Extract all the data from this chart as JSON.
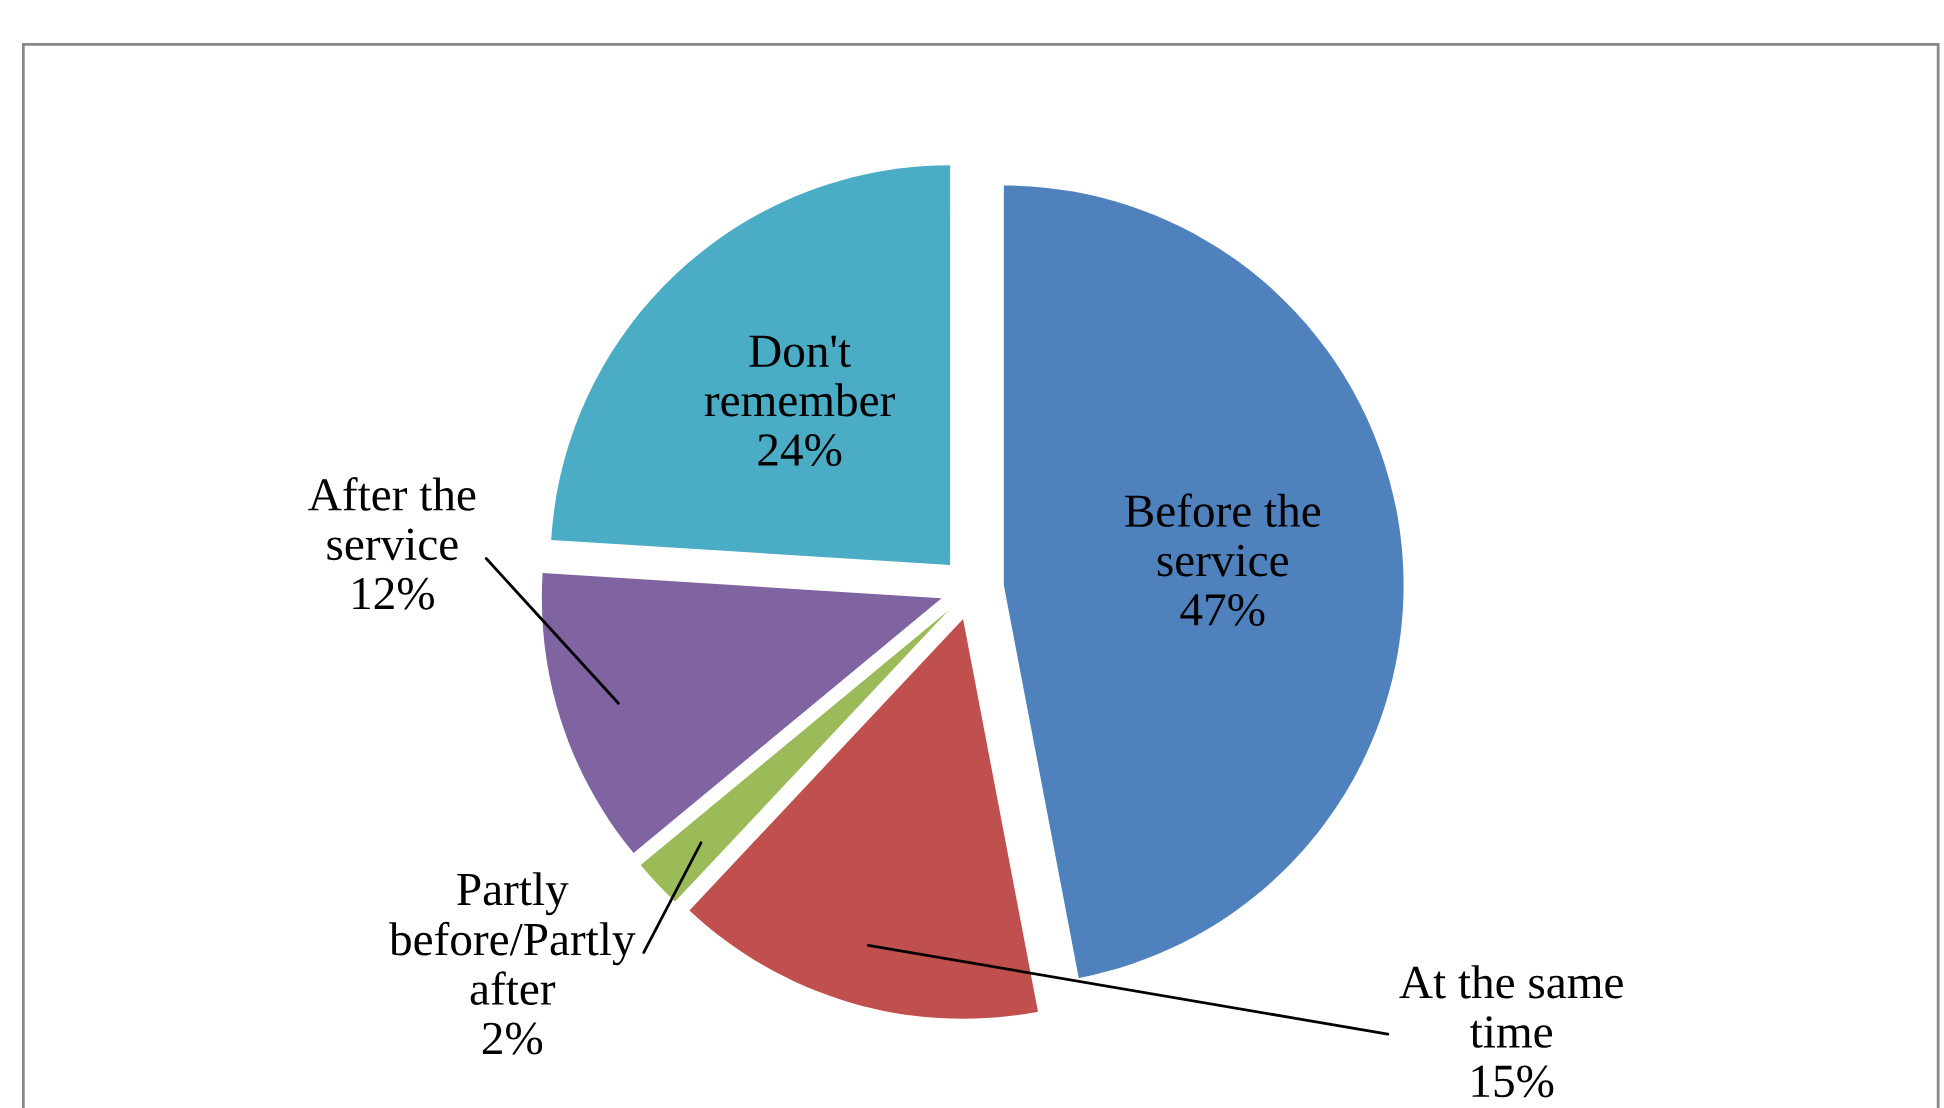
{
  "chart_data": {
    "type": "pie",
    "categories": [
      "Before the service",
      "At the same time",
      "Partly before/Partly after",
      "After the service",
      "Don't remember"
    ],
    "values": [
      47,
      15,
      2,
      12,
      24
    ],
    "colors": [
      "#4f81bd",
      "#c0504d",
      "#9bbb59",
      "#8064a2",
      "#4bacc6"
    ],
    "value_labels": [
      "47%",
      "15%",
      "2%",
      "12%",
      "24%"
    ],
    "legend": false
  }
}
